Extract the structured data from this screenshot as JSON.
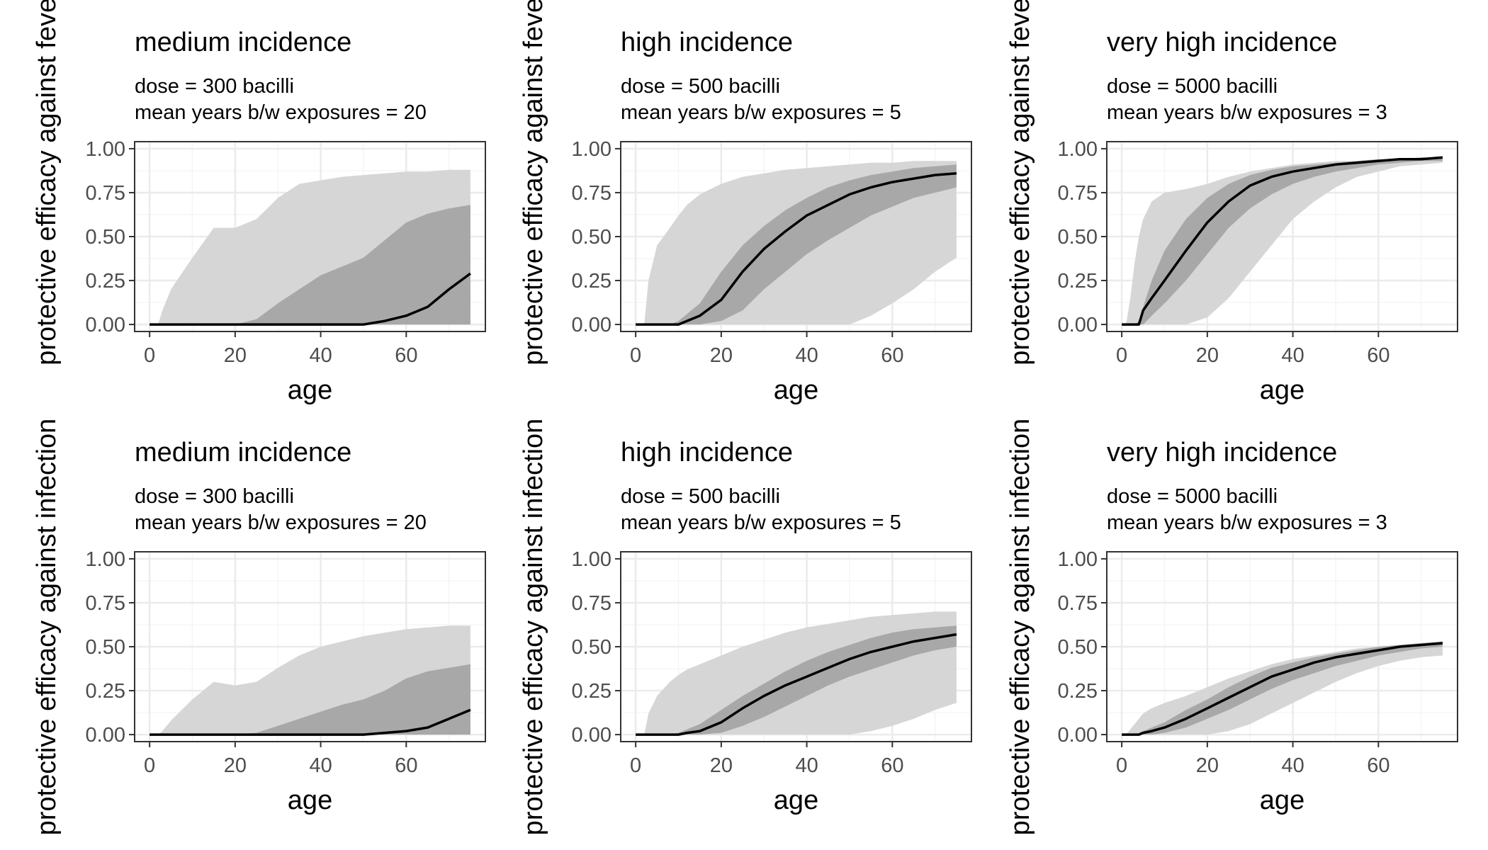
{
  "figure": {
    "shared_ylabel_top": "protective efficacy against fever",
    "shared_ylabel_bottom": "protective efficacy against infection",
    "colors": {
      "outer_band": "#d6d6d6",
      "inner_band": "#a8a8a8",
      "median_line": "#000000",
      "panel_border": "#333333",
      "grid_major": "#ebebeb",
      "grid_minor": "#f5f5f5",
      "tick_label": "#4d4d4d"
    }
  },
  "chart_data": [
    {
      "type": "area",
      "title": "medium incidence",
      "subtitle_line1": "dose = 300 bacilli",
      "subtitle_line2": "mean years b/w exposures = 20",
      "xlabel": "age",
      "ylabel": "protective efficacy against fever",
      "xlim": [
        -3.5,
        78.5
      ],
      "ylim": [
        -0.04,
        1.04
      ],
      "xticks": [
        "0",
        "20",
        "40",
        "60"
      ],
      "yticks": [
        "0.00",
        "0.25",
        "0.50",
        "0.75",
        "1.00"
      ],
      "grid": true,
      "x": [
        0,
        2,
        3,
        5,
        10,
        15,
        20,
        25,
        30,
        35,
        40,
        45,
        50,
        55,
        60,
        65,
        70,
        75
      ],
      "outer_upper": [
        0,
        0,
        0.08,
        0.2,
        0.38,
        0.55,
        0.55,
        0.6,
        0.72,
        0.8,
        0.82,
        0.84,
        0.85,
        0.86,
        0.87,
        0.87,
        0.88,
        0.88
      ],
      "inner_upper": [
        0,
        0,
        0,
        0,
        0,
        0,
        0,
        0.03,
        0.12,
        0.2,
        0.28,
        0.33,
        0.38,
        0.48,
        0.58,
        0.63,
        0.66,
        0.68
      ],
      "median": [
        0,
        0,
        0,
        0,
        0,
        0,
        0,
        0,
        0,
        0,
        0,
        0,
        0,
        0.02,
        0.05,
        0.1,
        0.2,
        0.29
      ],
      "inner_lower": [
        0,
        0,
        0,
        0,
        0,
        0,
        0,
        0,
        0,
        0,
        0,
        0,
        0,
        0,
        0,
        0,
        0,
        0
      ],
      "outer_lower": [
        0,
        0,
        0,
        0,
        0,
        0,
        0,
        0,
        0,
        0,
        0,
        0,
        0,
        0,
        0,
        0,
        0,
        0
      ]
    },
    {
      "type": "area",
      "title": "high incidence",
      "subtitle_line1": "dose = 500 bacilli",
      "subtitle_line2": "mean years b/w exposures = 5",
      "xlabel": "age",
      "ylabel": "protective efficacy against fever",
      "xlim": [
        -3.5,
        78.5
      ],
      "ylim": [
        -0.04,
        1.04
      ],
      "xticks": [
        "0",
        "20",
        "40",
        "60"
      ],
      "yticks": [
        "0.00",
        "0.25",
        "0.50",
        "0.75",
        "1.00"
      ],
      "grid": true,
      "x": [
        0,
        1,
        2,
        3,
        5,
        8,
        10,
        12,
        15,
        20,
        25,
        30,
        35,
        40,
        45,
        50,
        55,
        60,
        65,
        70,
        75
      ],
      "outer_upper": [
        0,
        0,
        0,
        0.25,
        0.45,
        0.55,
        0.62,
        0.68,
        0.74,
        0.8,
        0.84,
        0.86,
        0.88,
        0.89,
        0.9,
        0.91,
        0.92,
        0.92,
        0.93,
        0.93,
        0.93
      ],
      "inner_upper": [
        0,
        0,
        0,
        0,
        0,
        0,
        0.02,
        0.06,
        0.12,
        0.3,
        0.45,
        0.56,
        0.65,
        0.72,
        0.78,
        0.82,
        0.85,
        0.87,
        0.89,
        0.9,
        0.91
      ],
      "median": [
        0,
        0,
        0,
        0,
        0,
        0,
        0,
        0.02,
        0.05,
        0.14,
        0.3,
        0.43,
        0.53,
        0.62,
        0.68,
        0.74,
        0.78,
        0.81,
        0.83,
        0.85,
        0.86
      ],
      "inner_lower": [
        0,
        0,
        0,
        0,
        0,
        0,
        0,
        0,
        0,
        0.02,
        0.08,
        0.2,
        0.3,
        0.4,
        0.48,
        0.55,
        0.62,
        0.67,
        0.72,
        0.75,
        0.78
      ],
      "outer_lower": [
        0,
        0,
        0,
        0,
        0,
        0,
        0,
        0,
        0,
        0,
        0,
        0,
        0,
        0,
        0,
        0,
        0.05,
        0.12,
        0.2,
        0.3,
        0.38
      ]
    },
    {
      "type": "area",
      "title": "very high incidence",
      "subtitle_line1": "dose = 5000 bacilli",
      "subtitle_line2": "mean years b/w exposures = 3",
      "xlabel": "age",
      "ylabel": "protective efficacy against fever",
      "xlim": [
        -3.5,
        78.5
      ],
      "ylim": [
        -0.04,
        1.04
      ],
      "xticks": [
        "0",
        "20",
        "40",
        "60"
      ],
      "yticks": [
        "0.00",
        "0.25",
        "0.50",
        "0.75",
        "1.00"
      ],
      "grid": true,
      "x": [
        0,
        1,
        2,
        3,
        4,
        5,
        7,
        10,
        15,
        20,
        25,
        30,
        35,
        40,
        45,
        50,
        55,
        60,
        65,
        70,
        75
      ],
      "outer_upper": [
        0,
        0,
        0.15,
        0.35,
        0.5,
        0.6,
        0.7,
        0.75,
        0.77,
        0.8,
        0.84,
        0.87,
        0.89,
        0.91,
        0.92,
        0.93,
        0.93,
        0.94,
        0.94,
        0.95,
        0.95
      ],
      "inner_upper": [
        0,
        0,
        0,
        0,
        0.02,
        0.1,
        0.25,
        0.42,
        0.6,
        0.72,
        0.8,
        0.85,
        0.88,
        0.9,
        0.91,
        0.92,
        0.93,
        0.94,
        0.94,
        0.95,
        0.95
      ],
      "median": [
        0,
        0,
        0,
        0,
        0,
        0.08,
        0.15,
        0.25,
        0.42,
        0.58,
        0.7,
        0.79,
        0.84,
        0.87,
        0.89,
        0.91,
        0.92,
        0.93,
        0.94,
        0.94,
        0.95
      ],
      "inner_lower": [
        0,
        0,
        0,
        0,
        0,
        0,
        0.05,
        0.12,
        0.25,
        0.4,
        0.55,
        0.66,
        0.74,
        0.8,
        0.84,
        0.87,
        0.89,
        0.91,
        0.92,
        0.93,
        0.93
      ],
      "outer_lower": [
        0,
        0,
        0,
        0,
        0,
        0,
        0,
        0,
        0,
        0.04,
        0.15,
        0.3,
        0.45,
        0.6,
        0.7,
        0.78,
        0.84,
        0.87,
        0.9,
        0.91,
        0.92
      ]
    },
    {
      "type": "area",
      "title": "medium incidence",
      "subtitle_line1": "dose = 300 bacilli",
      "subtitle_line2": "mean years b/w exposures = 20",
      "xlabel": "age",
      "ylabel": "protective efficacy against infection",
      "xlim": [
        -3.5,
        78.5
      ],
      "ylim": [
        -0.04,
        1.04
      ],
      "xticks": [
        "0",
        "20",
        "40",
        "60"
      ],
      "yticks": [
        "0.00",
        "0.25",
        "0.50",
        "0.75",
        "1.00"
      ],
      "grid": true,
      "x": [
        0,
        2,
        3,
        5,
        10,
        15,
        20,
        25,
        30,
        35,
        40,
        45,
        50,
        55,
        60,
        65,
        70,
        75
      ],
      "outer_upper": [
        0,
        0,
        0.02,
        0.08,
        0.2,
        0.3,
        0.28,
        0.3,
        0.38,
        0.45,
        0.5,
        0.53,
        0.56,
        0.58,
        0.6,
        0.61,
        0.62,
        0.62
      ],
      "inner_upper": [
        0,
        0,
        0,
        0,
        0,
        0,
        0,
        0.01,
        0.05,
        0.09,
        0.13,
        0.17,
        0.2,
        0.25,
        0.32,
        0.36,
        0.38,
        0.4
      ],
      "median": [
        0,
        0,
        0,
        0,
        0,
        0,
        0,
        0,
        0,
        0,
        0,
        0,
        0,
        0.01,
        0.02,
        0.04,
        0.09,
        0.14
      ],
      "inner_lower": [
        0,
        0,
        0,
        0,
        0,
        0,
        0,
        0,
        0,
        0,
        0,
        0,
        0,
        0,
        0,
        0,
        0,
        0
      ],
      "outer_lower": [
        0,
        0,
        0,
        0,
        0,
        0,
        0,
        0,
        0,
        0,
        0,
        0,
        0,
        0,
        0,
        0,
        0,
        0
      ]
    },
    {
      "type": "area",
      "title": "high incidence",
      "subtitle_line1": "dose = 500 bacilli",
      "subtitle_line2": "mean years b/w exposures = 5",
      "xlabel": "age",
      "ylabel": "protective efficacy against infection",
      "xlim": [
        -3.5,
        78.5
      ],
      "ylim": [
        -0.04,
        1.04
      ],
      "xticks": [
        "0",
        "20",
        "40",
        "60"
      ],
      "yticks": [
        "0.00",
        "0.25",
        "0.50",
        "0.75",
        "1.00"
      ],
      "grid": true,
      "x": [
        0,
        1,
        2,
        3,
        5,
        8,
        10,
        12,
        15,
        20,
        25,
        30,
        35,
        40,
        45,
        50,
        55,
        60,
        65,
        70,
        75
      ],
      "outer_upper": [
        0,
        0,
        0,
        0.12,
        0.22,
        0.3,
        0.34,
        0.37,
        0.4,
        0.45,
        0.5,
        0.54,
        0.58,
        0.61,
        0.63,
        0.65,
        0.67,
        0.68,
        0.69,
        0.7,
        0.7
      ],
      "inner_upper": [
        0,
        0,
        0,
        0,
        0,
        0,
        0.01,
        0.03,
        0.06,
        0.14,
        0.22,
        0.29,
        0.36,
        0.42,
        0.47,
        0.51,
        0.55,
        0.58,
        0.6,
        0.61,
        0.62
      ],
      "median": [
        0,
        0,
        0,
        0,
        0,
        0,
        0,
        0.01,
        0.02,
        0.07,
        0.15,
        0.22,
        0.28,
        0.33,
        0.38,
        0.43,
        0.47,
        0.5,
        0.53,
        0.55,
        0.57
      ],
      "inner_lower": [
        0,
        0,
        0,
        0,
        0,
        0,
        0,
        0,
        0,
        0.01,
        0.05,
        0.1,
        0.16,
        0.22,
        0.28,
        0.33,
        0.37,
        0.41,
        0.45,
        0.48,
        0.5
      ],
      "outer_lower": [
        0,
        0,
        0,
        0,
        0,
        0,
        0,
        0,
        0,
        0,
        0,
        0,
        0,
        0,
        0,
        0,
        0.02,
        0.05,
        0.09,
        0.14,
        0.18
      ]
    },
    {
      "type": "area",
      "title": "very high incidence",
      "subtitle_line1": "dose = 5000 bacilli",
      "subtitle_line2": "mean years b/w exposures = 3",
      "xlabel": "age",
      "ylabel": "protective efficacy against infection",
      "xlim": [
        -3.5,
        78.5
      ],
      "ylim": [
        -0.04,
        1.04
      ],
      "xticks": [
        "0",
        "20",
        "40",
        "60"
      ],
      "yticks": [
        "0.00",
        "0.25",
        "0.50",
        "0.75",
        "1.00"
      ],
      "grid": true,
      "x": [
        0,
        1,
        2,
        3,
        4,
        5,
        7,
        10,
        15,
        20,
        25,
        30,
        35,
        40,
        45,
        50,
        55,
        60,
        65,
        70,
        75
      ],
      "outer_upper": [
        0,
        0,
        0.03,
        0.06,
        0.09,
        0.12,
        0.15,
        0.18,
        0.22,
        0.27,
        0.32,
        0.36,
        0.4,
        0.43,
        0.45,
        0.47,
        0.49,
        0.5,
        0.51,
        0.52,
        0.53
      ],
      "inner_upper": [
        0,
        0,
        0,
        0,
        0.01,
        0.02,
        0.04,
        0.07,
        0.14,
        0.2,
        0.27,
        0.33,
        0.38,
        0.41,
        0.44,
        0.46,
        0.48,
        0.5,
        0.51,
        0.52,
        0.53
      ],
      "median": [
        0,
        0,
        0,
        0,
        0,
        0.01,
        0.02,
        0.04,
        0.09,
        0.15,
        0.21,
        0.27,
        0.33,
        0.37,
        0.41,
        0.44,
        0.46,
        0.48,
        0.5,
        0.51,
        0.52
      ],
      "inner_lower": [
        0,
        0,
        0,
        0,
        0,
        0,
        0,
        0.01,
        0.04,
        0.09,
        0.14,
        0.2,
        0.26,
        0.31,
        0.35,
        0.39,
        0.42,
        0.45,
        0.47,
        0.49,
        0.5
      ],
      "outer_lower": [
        0,
        0,
        0,
        0,
        0,
        0,
        0,
        0,
        0,
        0,
        0.02,
        0.06,
        0.12,
        0.18,
        0.24,
        0.3,
        0.35,
        0.39,
        0.42,
        0.44,
        0.45
      ]
    }
  ]
}
